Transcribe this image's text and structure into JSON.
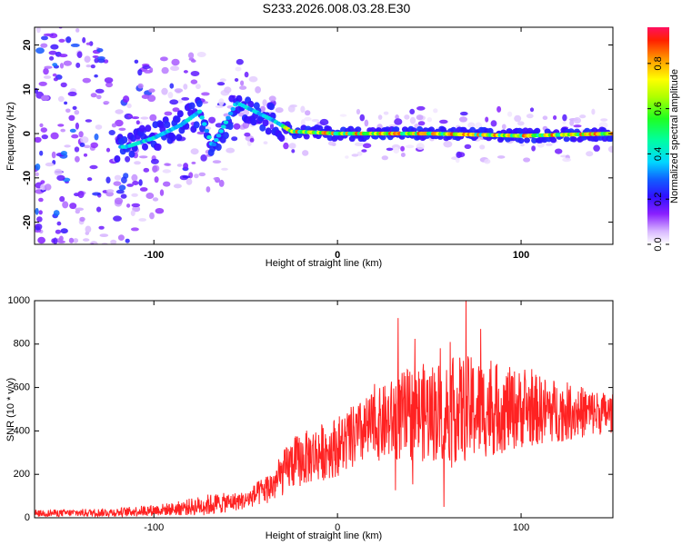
{
  "title": "S233.2026.008.03.28.E30",
  "colors": {
    "snr_line": "#ff2222",
    "axis": "#000000",
    "background": "#ffffff"
  },
  "chart_data": [
    {
      "type": "heatmap",
      "name": "spectrogram",
      "xlabel": "Height of straight line (km)",
      "ylabel": "Frequency (Hz)",
      "xlim": [
        -165,
        150
      ],
      "ylim": [
        -25,
        24
      ],
      "xticks": [
        -100,
        0,
        100
      ],
      "yticks": [
        -20,
        -10,
        0,
        10,
        20
      ],
      "colorbar": {
        "label": "Normalized spectral amplitude",
        "range": [
          0,
          0.96
        ],
        "ticks": [
          0.0,
          0.2,
          0.4,
          0.6,
          0.8
        ]
      },
      "ridge": [
        {
          "x": -115,
          "y": -3
        },
        {
          "x": -100,
          "y": -1
        },
        {
          "x": -85,
          "y": 2
        },
        {
          "x": -75,
          "y": 5
        },
        {
          "x": -68,
          "y": -3
        },
        {
          "x": -55,
          "y": 7
        },
        {
          "x": -45,
          "y": 5
        },
        {
          "x": -35,
          "y": 3
        },
        {
          "x": -25,
          "y": 0.5
        },
        {
          "x": 0,
          "y": 0
        },
        {
          "x": 50,
          "y": 0
        },
        {
          "x": 100,
          "y": -0.5
        },
        {
          "x": 150,
          "y": 0
        }
      ]
    },
    {
      "type": "line",
      "name": "snr",
      "xlabel": "Height of straight line (km)",
      "ylabel": "SNR (10 * v/v)",
      "xlim": [
        -165,
        150
      ],
      "ylim": [
        0,
        1000
      ],
      "xticks": [
        -100,
        0,
        100
      ],
      "yticks": [
        0,
        200,
        400,
        600,
        800,
        1000
      ],
      "envelope": [
        {
          "x": -165,
          "baseline": 20,
          "noise": 15
        },
        {
          "x": -120,
          "baseline": 25,
          "noise": 20
        },
        {
          "x": -90,
          "baseline": 40,
          "noise": 30
        },
        {
          "x": -70,
          "baseline": 60,
          "noise": 50
        },
        {
          "x": -50,
          "baseline": 80,
          "noise": 40
        },
        {
          "x": -35,
          "baseline": 150,
          "noise": 80
        },
        {
          "x": -25,
          "baseline": 250,
          "noise": 120
        },
        {
          "x": 0,
          "baseline": 330,
          "noise": 140
        },
        {
          "x": 20,
          "baseline": 420,
          "noise": 160
        },
        {
          "x": 40,
          "baseline": 480,
          "noise": 220
        },
        {
          "x": 70,
          "baseline": 500,
          "noise": 250
        },
        {
          "x": 100,
          "baseline": 500,
          "noise": 180
        },
        {
          "x": 150,
          "baseline": 480,
          "noise": 90
        }
      ],
      "peaks": [
        {
          "x": 33,
          "y": 920
        },
        {
          "x": 70,
          "y": 1000
        },
        {
          "x": 78,
          "y": 870
        },
        {
          "x": 58,
          "y": 50
        }
      ]
    }
  ]
}
